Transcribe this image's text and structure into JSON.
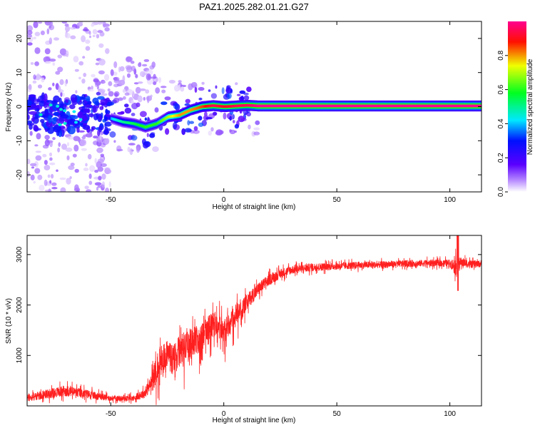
{
  "title": "PAZ1.2025.282.01.21.G27",
  "colors": {
    "snr_line": "#ff1f1f",
    "colormap": [
      "#ffffff",
      "#8a00ff",
      "#0000ff",
      "#00e0ff",
      "#00ff00",
      "#ffff00",
      "#ff0000",
      "#ff0080"
    ]
  },
  "chart_data": [
    {
      "type": "heatmap",
      "xlabel": "Height of straight line (km)",
      "ylabel": "Frequency (Hz)",
      "xlim": [
        -87,
        114
      ],
      "ylim": [
        -25,
        25
      ],
      "xticks": [
        -50,
        0,
        50,
        100
      ],
      "xtick_labels": [
        "-50",
        "0",
        "50",
        "100"
      ],
      "yticks": [
        20,
        10,
        0,
        -10,
        -20
      ],
      "ytick_labels": [
        "20",
        "10",
        "0",
        "-10",
        "-20"
      ],
      "colorbar": {
        "label": "Normalized spectral amplitude",
        "range": [
          0,
          1
        ],
        "ticks": [
          0.0,
          0.2,
          0.4,
          0.6,
          0.8
        ],
        "tick_labels": [
          "0.0",
          "0.2",
          "0.4",
          "0.6",
          "0.8"
        ]
      },
      "ridge_frequency_track": {
        "x": [
          -87,
          -80,
          -72,
          -65,
          -58,
          -50,
          -45,
          -40,
          -35,
          -30,
          -25,
          -20,
          -15,
          -10,
          -5,
          0,
          5,
          10,
          15,
          114
        ],
        "y": [
          -1,
          -1.5,
          -3,
          -2,
          -1.5,
          -3.5,
          -4.5,
          -5,
          -6,
          -5,
          -3,
          -2.5,
          -1,
          0,
          0.3,
          0,
          0.2,
          0.4,
          0.2,
          0.2
        ],
        "amplitude": [
          0.3,
          0.3,
          0.3,
          0.35,
          0.3,
          0.4,
          0.5,
          0.55,
          0.6,
          0.6,
          0.7,
          0.8,
          0.8,
          0.85,
          0.95,
          0.9,
          0.95,
          0.95,
          1.0,
          1.0
        ]
      },
      "grid": false
    },
    {
      "type": "line",
      "xlabel": "Height of straight line (km)",
      "ylabel": "SNR (10 * v/v)",
      "xlim": [
        -87,
        114
      ],
      "ylim": [
        0,
        3380
      ],
      "xticks": [
        -50,
        0,
        50,
        100
      ],
      "xtick_labels": [
        "-50",
        "0",
        "50",
        "100"
      ],
      "yticks": [
        1000,
        2000,
        3000
      ],
      "ytick_labels": [
        "1000",
        "2000",
        "3000"
      ],
      "envelope": {
        "x": [
          -87,
          -80,
          -70,
          -60,
          -50,
          -40,
          -35,
          -32,
          -30,
          -28,
          -25,
          -22,
          -20,
          -18,
          -15,
          -12,
          -10,
          -8,
          -5,
          -2,
          0,
          3,
          5,
          8,
          10,
          15,
          20,
          25,
          30,
          40,
          50,
          60,
          70,
          80,
          90,
          100,
          103,
          105,
          110,
          114
        ],
        "mean": [
          150,
          220,
          300,
          230,
          150,
          150,
          250,
          450,
          700,
          900,
          1000,
          900,
          1050,
          1150,
          1200,
          1300,
          1350,
          1500,
          1600,
          1650,
          1500,
          1650,
          1800,
          1900,
          2050,
          2300,
          2500,
          2620,
          2700,
          2750,
          2770,
          2790,
          2800,
          2820,
          2830,
          2830,
          2750,
          2850,
          2800,
          2820
        ],
        "noise": [
          90,
          110,
          140,
          110,
          70,
          70,
          120,
          220,
          330,
          380,
          420,
          400,
          400,
          380,
          380,
          360,
          350,
          330,
          320,
          300,
          300,
          280,
          260,
          230,
          200,
          170,
          140,
          120,
          110,
          100,
          90,
          90,
          85,
          85,
          85,
          90,
          250,
          120,
          90,
          90
        ]
      },
      "grid": false
    }
  ]
}
